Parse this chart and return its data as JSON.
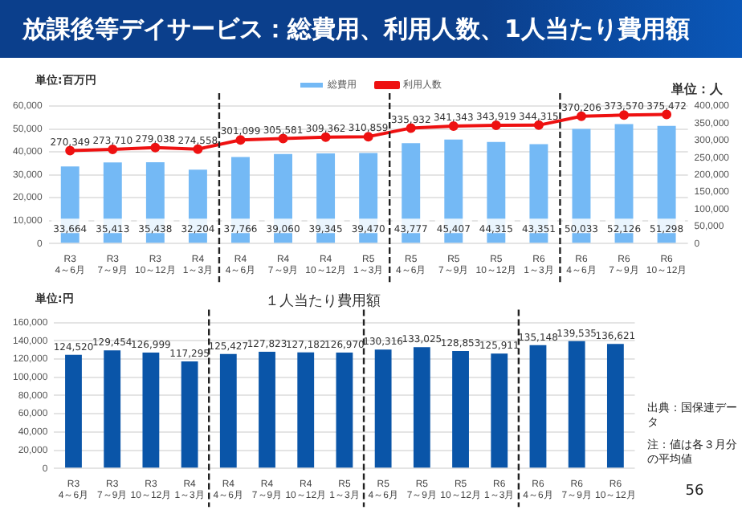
{
  "chart_data": [
    {
      "type": "bar",
      "title": "放課後等デイサービス：総費用、利用人数、1人当たり費用額",
      "ylabel": "単位:百万円",
      "y2label": "単位：人",
      "categories": [
        "R3\n4～6月",
        "R3\n7～9月",
        "R3\n10～12月",
        "R4\n1～3月",
        "R4\n4～6月",
        "R4\n7～9月",
        "R4\n10～12月",
        "R5\n1～3月",
        "R5\n4～6月",
        "R5\n7～9月",
        "R5\n10～12月",
        "R6\n1～3月",
        "R6\n4～6月",
        "R6\n7～9月",
        "R6\n10～12月"
      ],
      "series": [
        {
          "name": "総費用",
          "type": "bar",
          "color": "#74b9f5",
          "values": [
            33664,
            35413,
            35438,
            32204,
            37766,
            39060,
            39345,
            39470,
            43777,
            45407,
            44315,
            43351,
            50033,
            52126,
            51298
          ],
          "value_labels": [
            "33,664",
            "35,413",
            "35,438",
            "32,204",
            "37,766",
            "39,060",
            "39,345",
            "39,470",
            "43,777",
            "45,407",
            "44,315",
            "43,351",
            "50,033",
            "52,126",
            "51,298"
          ]
        },
        {
          "name": "利用人数",
          "type": "line",
          "axis": "y2",
          "color": "#ee1111",
          "values": [
            270349,
            273710,
            279038,
            274558,
            301099,
            305581,
            309362,
            310859,
            335932,
            341343,
            343919,
            344315,
            370206,
            373570,
            375472
          ],
          "value_labels": [
            "270,349",
            "273,710",
            "279,038",
            "274,558",
            "301,099",
            "305,581",
            "309,362",
            "310,859",
            "335,932",
            "341,343",
            "343,919",
            "344,315",
            "370,206",
            "373,570",
            "375,472"
          ]
        }
      ],
      "ylim": [
        0,
        60000
      ],
      "yticks": [
        0,
        {
          "value": 10000,
          "label": "10,000"
        },
        {
          "value": 20000,
          "label": "20,000"
        },
        {
          "value": 30000,
          "label": "30,000"
        },
        {
          "value": 40000,
          "label": "40,000"
        },
        {
          "value": 50000,
          "label": "50,000"
        },
        {
          "value": 60000,
          "label": "60,000"
        }
      ],
      "y2lim": [
        0,
        400000
      ],
      "y2ticks": [
        0,
        {
          "value": 50000,
          "label": "50,000"
        },
        {
          "value": 100000,
          "label": "100,000"
        },
        {
          "value": 150000,
          "label": "150,000"
        },
        {
          "value": 200000,
          "label": "200,000"
        },
        {
          "value": 250000,
          "label": "250,000"
        },
        {
          "value": 300000,
          "label": "300,000"
        },
        {
          "value": 350000,
          "label": "350,000"
        },
        {
          "value": 400000,
          "label": "400,000"
        }
      ],
      "grid": "y",
      "legend": "top",
      "marker": "circle"
    },
    {
      "type": "bar",
      "title": "１人当たり費用額",
      "ylabel": "単位:円",
      "categories": [
        "R3\n4～6月",
        "R3\n7～9月",
        "R3\n10～12月",
        "R4\n1～3月",
        "R4\n4～6月",
        "R4\n7～9月",
        "R4\n10～12月",
        "R5\n1～3月",
        "R5\n4～6月",
        "R5\n7～9月",
        "R5\n10～12月",
        "R6\n1～3月",
        "R6\n4～6月",
        "R6\n7～9月",
        "R6\n10～12月"
      ],
      "series": [
        {
          "color": "#0a55a8",
          "values": [
            124520,
            129454,
            126999,
            117295,
            125427,
            127823,
            127182,
            126970,
            130316,
            133025,
            128853,
            125911,
            135148,
            139535,
            136621
          ],
          "value_labels": [
            "124,520",
            "129,454",
            "126,999",
            "117,295",
            "125,427",
            "127,823",
            "127,182",
            "126,970",
            "130,316",
            "133,025",
            "128,853",
            "125,911",
            "135,148",
            "139,535",
            "136,621"
          ]
        }
      ],
      "ylim": [
        0,
        160000
      ],
      "yticks": [
        0,
        {
          "value": 20000,
          "label": "20,000"
        },
        {
          "value": 40000,
          "label": "40,000"
        },
        {
          "value": 60000,
          "label": "60,000"
        },
        {
          "value": 80000,
          "label": "80,000"
        },
        {
          "value": 100000,
          "label": "100,000"
        },
        {
          "value": 120000,
          "label": "120,000"
        },
        {
          "value": 140000,
          "label": "140,000"
        },
        {
          "value": 160000,
          "label": "160,000"
        }
      ],
      "grid": "y",
      "annotations": [
        "出典：国保連データ",
        "注：値は各３月分の平均値",
        "56"
      ]
    }
  ]
}
